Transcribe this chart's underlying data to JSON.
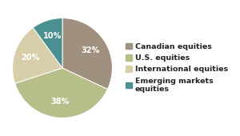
{
  "slices": [
    {
      "label": "Canadian equities",
      "pct": 32,
      "color": "#a09080"
    },
    {
      "label": "U.S. equities",
      "pct": 38,
      "color": "#b8be8a"
    },
    {
      "label": "International equities",
      "pct": 20,
      "color": "#d8ceaa"
    },
    {
      "label": "Emerging markets\nequities",
      "pct": 10,
      "color": "#4a9090"
    }
  ],
  "background_color": "#ffffff",
  "text_color": "#222222",
  "autopct_fontsize": 7.0,
  "legend_fontsize": 6.8,
  "startangle": 90
}
